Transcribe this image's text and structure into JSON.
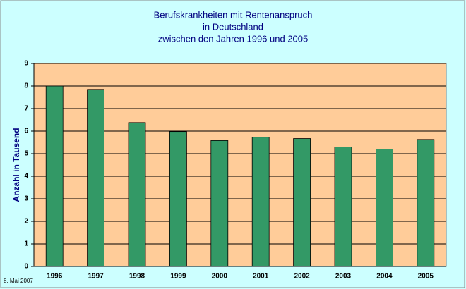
{
  "chart_data": {
    "type": "bar",
    "title": [
      "Berufskrankheiten mit Rentenanspruch",
      "in Deutschland",
      "zwischen den Jahren 1996 und 2005"
    ],
    "y_label": "Anzahl in Tausend",
    "footnote": "8. Mai 2007",
    "categories": [
      "1996",
      "1997",
      "1998",
      "1999",
      "2000",
      "2001",
      "2002",
      "2003",
      "2004",
      "2005"
    ],
    "values": [
      8.0,
      7.85,
      6.38,
      5.98,
      5.58,
      5.73,
      5.67,
      5.3,
      5.2,
      5.63
    ],
    "color": "#339966",
    "ylim": [
      0,
      9
    ],
    "yticks": [
      0,
      1,
      2,
      3,
      4,
      5,
      6,
      7,
      8,
      9
    ],
    "grid": true
  }
}
